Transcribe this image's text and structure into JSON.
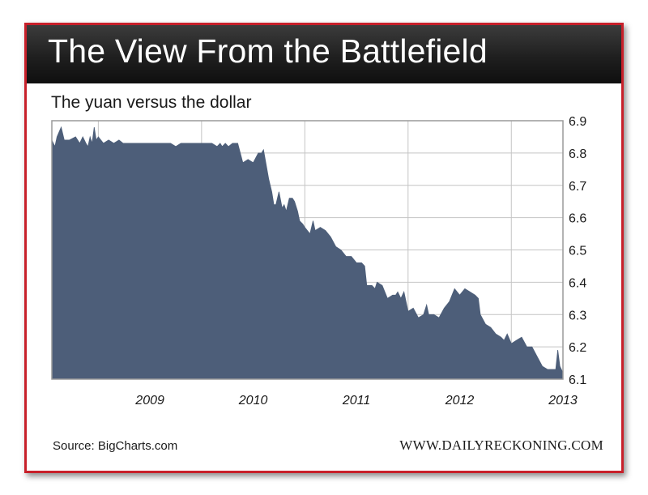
{
  "banner": {
    "title": "The View From the Battlefield"
  },
  "chart_data": {
    "type": "area",
    "title": "The yuan versus the dollar",
    "xlabel": "",
    "ylabel": "",
    "x_tick_labels": [
      "2009",
      "2010",
      "2011",
      "2012",
      "2013"
    ],
    "y_tick_labels": [
      "6.9",
      "6.8",
      "6.7",
      "6.6",
      "6.5",
      "6.4",
      "6.3",
      "6.2",
      "6.1"
    ],
    "ylim": [
      6.1,
      6.9
    ],
    "xlim": [
      2008.55,
      2013.5
    ],
    "y_axis_position": "right",
    "grid": true,
    "legend": "none",
    "color": "#4d5e79",
    "series": [
      {
        "x": [
          2008.55,
          2008.58,
          2008.6,
          2008.64,
          2008.67,
          2008.72,
          2008.78,
          2008.82,
          2008.85,
          2008.88,
          2008.9,
          2008.92,
          2008.94,
          2008.96,
          2008.98,
          2009.0,
          2009.05,
          2009.1,
          2009.15,
          2009.2,
          2009.24,
          2009.3,
          2009.4,
          2009.5,
          2009.6,
          2009.7,
          2009.75,
          2009.8,
          2009.9,
          2010.0,
          2010.1,
          2010.15,
          2010.18,
          2010.2,
          2010.23,
          2010.26,
          2010.3,
          2010.35,
          2010.4,
          2010.45,
          2010.5,
          2010.55,
          2010.58,
          2010.6,
          2010.65,
          2010.68,
          2010.7,
          2010.72,
          2010.75,
          2010.78,
          2010.8,
          2010.82,
          2010.85,
          2010.88,
          2010.9,
          2010.93,
          2010.95,
          2010.98,
          2011.0,
          2011.05,
          2011.08,
          2011.1,
          2011.15,
          2011.2,
          2011.25,
          2011.3,
          2011.35,
          2011.4,
          2011.45,
          2011.5,
          2011.55,
          2011.58,
          2011.6,
          2011.65,
          2011.68,
          2011.7,
          2011.75,
          2011.8,
          2011.85,
          2011.88,
          2011.9,
          2011.93,
          2011.96,
          2012.0,
          2012.05,
          2012.1,
          2012.15,
          2012.18,
          2012.2,
          2012.25,
          2012.3,
          2012.35,
          2012.4,
          2012.45,
          2012.5,
          2012.55,
          2012.6,
          2012.65,
          2012.68,
          2012.7,
          2012.75,
          2012.8,
          2012.85,
          2012.9,
          2012.93,
          2012.96,
          2013.0,
          2013.05,
          2013.1,
          2013.15,
          2013.2,
          2013.25,
          2013.3,
          2013.35,
          2013.4,
          2013.43,
          2013.45,
          2013.47,
          2013.5
        ],
        "values": [
          6.84,
          6.82,
          6.85,
          6.88,
          6.84,
          6.84,
          6.85,
          6.83,
          6.85,
          6.83,
          6.82,
          6.85,
          6.83,
          6.88,
          6.84,
          6.85,
          6.83,
          6.84,
          6.83,
          6.84,
          6.83,
          6.83,
          6.83,
          6.83,
          6.83,
          6.83,
          6.82,
          6.83,
          6.83,
          6.83,
          6.83,
          6.82,
          6.83,
          6.82,
          6.83,
          6.82,
          6.83,
          6.83,
          6.77,
          6.78,
          6.77,
          6.8,
          6.8,
          6.81,
          6.72,
          6.68,
          6.64,
          6.64,
          6.68,
          6.63,
          6.64,
          6.62,
          6.66,
          6.66,
          6.65,
          6.62,
          6.59,
          6.58,
          6.57,
          6.55,
          6.59,
          6.56,
          6.57,
          6.56,
          6.54,
          6.51,
          6.5,
          6.48,
          6.48,
          6.46,
          6.46,
          6.45,
          6.39,
          6.39,
          6.38,
          6.4,
          6.39,
          6.35,
          6.36,
          6.36,
          6.37,
          6.35,
          6.37,
          6.31,
          6.32,
          6.29,
          6.3,
          6.33,
          6.3,
          6.3,
          6.29,
          6.32,
          6.34,
          6.38,
          6.36,
          6.38,
          6.37,
          6.36,
          6.35,
          6.3,
          6.27,
          6.26,
          6.24,
          6.23,
          6.22,
          6.24,
          6.21,
          6.22,
          6.23,
          6.2,
          6.2,
          6.17,
          6.14,
          6.13,
          6.13,
          6.13,
          6.19,
          6.14,
          6.12
        ]
      }
    ]
  },
  "footer": {
    "source": "Source: BigCharts.com",
    "site": "WWW.DAILYRECKONING.COM"
  }
}
